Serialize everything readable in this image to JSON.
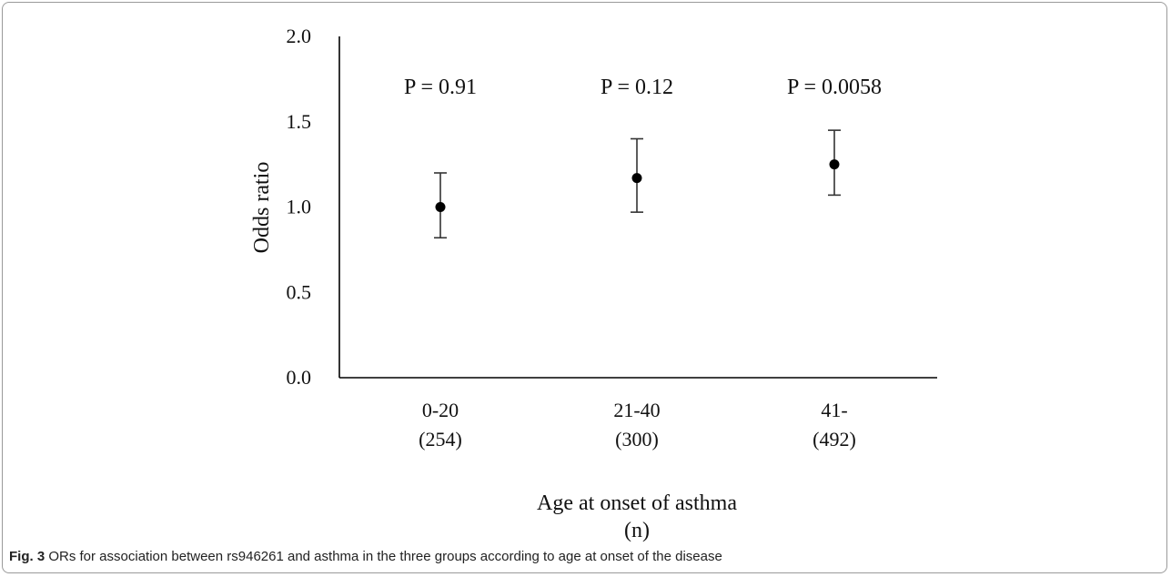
{
  "chart_data": {
    "type": "scatter",
    "style": "point estimates with error bars",
    "categories": [
      "0-20",
      "21-40",
      "41-"
    ],
    "category_counts": [
      "(254)",
      "(300)",
      "(492)"
    ],
    "values": [
      1.0,
      1.17,
      1.25
    ],
    "ci_lower": [
      0.82,
      0.97,
      1.07
    ],
    "ci_upper": [
      1.2,
      1.4,
      1.45
    ],
    "p_values": [
      "P = 0.91",
      "P = 0.12",
      "P = 0.0058"
    ],
    "xlabel": "Age at onset of asthma",
    "xlabel_line2": "(n)",
    "ylabel": "Odds ratio",
    "ylim": [
      0.0,
      2.0
    ],
    "yticks": [
      "0.0",
      "0.5",
      "1.0",
      "1.5",
      "2.0"
    ],
    "grid": false,
    "colors": {
      "marker": "#000000",
      "axis": "#000000",
      "errorbar": "#333333"
    }
  },
  "caption": {
    "label": "Fig. 3",
    "text": "ORs for association between rs946261 and asthma in the three groups according to age at onset of the disease"
  }
}
